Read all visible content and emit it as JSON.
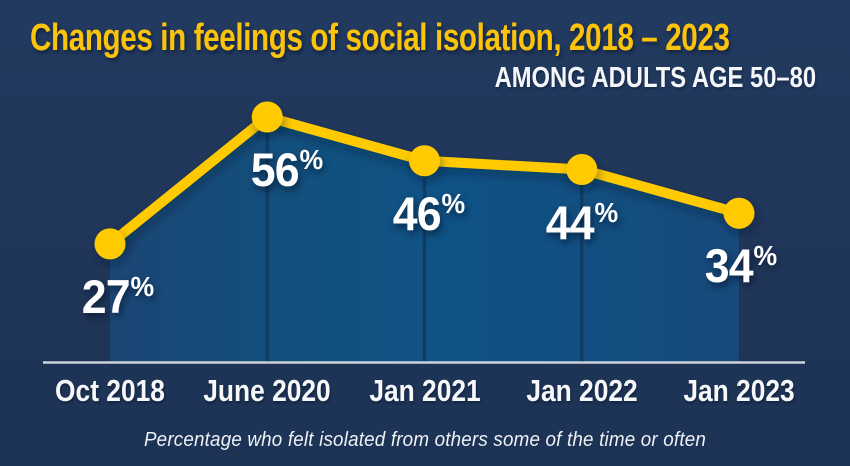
{
  "colors": {
    "background": "#203659",
    "title_yellow": "#fcc30b",
    "line_yellow": "#ffcb05",
    "area_fill_left": "#1b4674",
    "area_fill_mid": "#0f5286",
    "area_fill_right": "#174a7a",
    "divider_line": "#0e3a5f",
    "axis_line": "#ccd2da",
    "label_white": "#ffffff"
  },
  "chart_data": {
    "type": "area",
    "title": "Changes in feelings of social isolation, 2018 – 2023",
    "subtitle": "AMONG ADULTS AGE 50–80",
    "categories": [
      "Oct 2018",
      "June 2020",
      "Jan 2021",
      "Jan 2022",
      "Jan 2023"
    ],
    "values": [
      27,
      56,
      46,
      44,
      34
    ],
    "unit": "%",
    "caption": "Percentage who felt isolated from others some of the time or often",
    "ylim": [
      0,
      60
    ],
    "grid": false,
    "legend": false,
    "xlabel": "",
    "ylabel": ""
  }
}
